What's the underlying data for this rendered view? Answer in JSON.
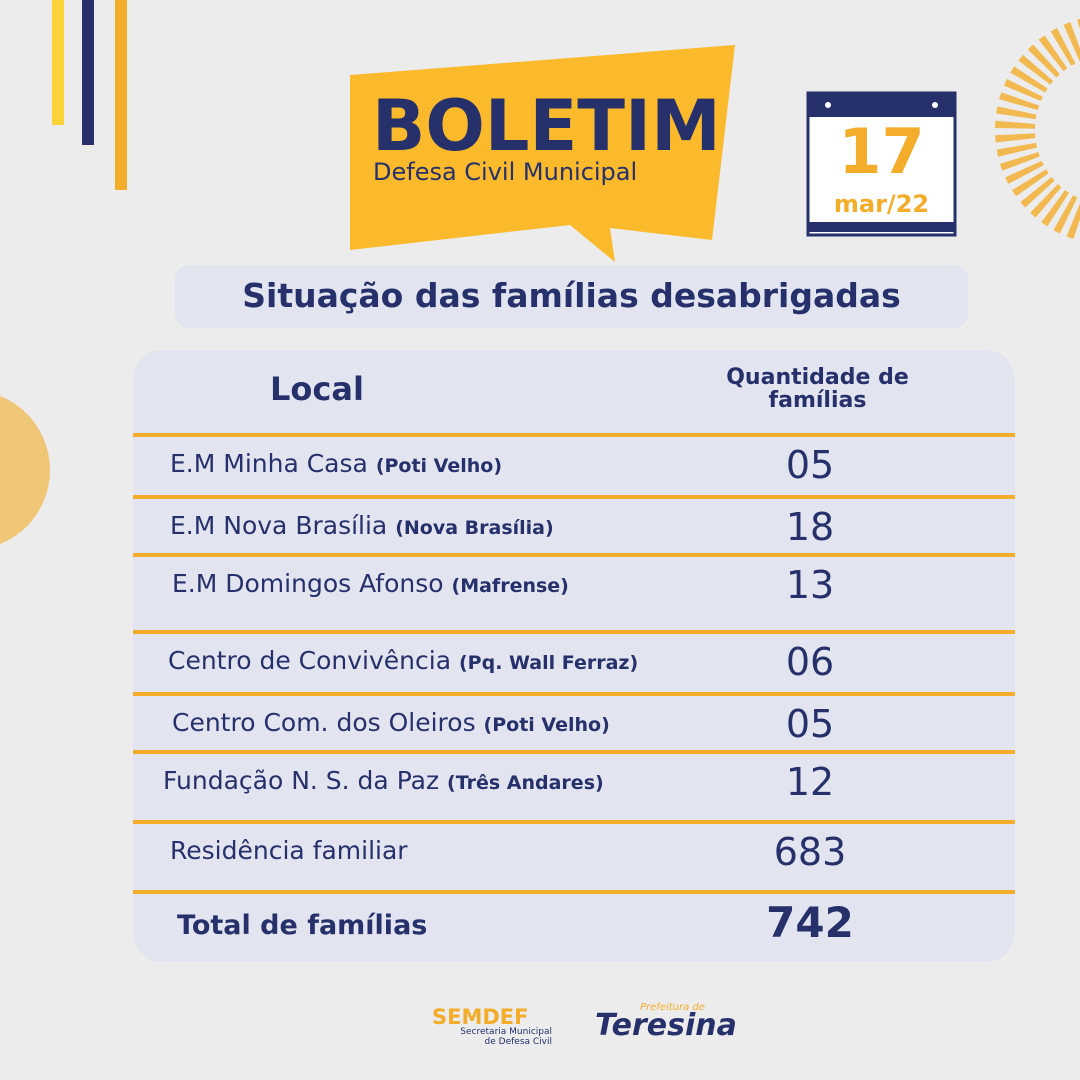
{
  "header": {
    "title": "BOLETIM",
    "subtitle": "Defesa Civil Municipal"
  },
  "date": {
    "day": "17",
    "month_year": "mar/22"
  },
  "heading": "Situação das famílias desabrigadas",
  "table": {
    "columns": [
      "Local",
      "Quantidade de famílias"
    ],
    "rows": [
      [
        "E.M Minha Casa",
        "(Poti Velho)",
        "05"
      ],
      [
        "E.M Nova Brasília",
        "(Nova Brasília)",
        "18"
      ],
      [
        "E.M Domingos Afonso",
        "(Mafrense)",
        "13"
      ],
      [
        "Centro de Convivência",
        "(Pq. Wall Ferraz)",
        "06"
      ],
      [
        "Centro Com. dos Oleiros",
        "(Poti Velho)",
        "05"
      ],
      [
        "Fundação N. S. da Paz",
        "(Três Andares)",
        "12"
      ],
      [
        "Residência familiar",
        "683"
      ]
    ],
    "total": [
      "Total de famílias",
      "742"
    ]
  },
  "footer": {
    "org": "SEMDEF",
    "org_full": "Secretaria Municipal de Defesa Civil",
    "city_prefix": "Prefeitura de",
    "city": "Teresina"
  }
}
